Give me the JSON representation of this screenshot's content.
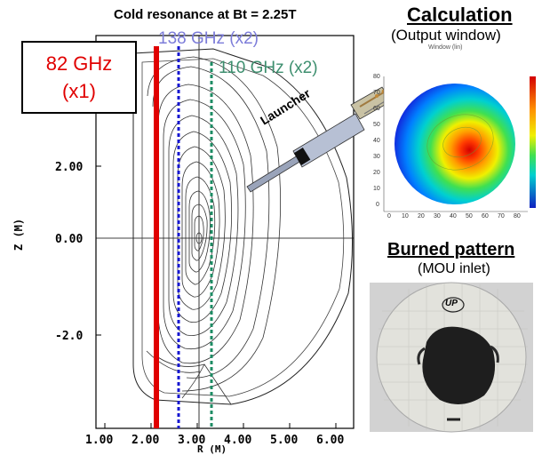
{
  "top_title": "Cold resonance at Bt = 2.25T",
  "resonances": {
    "r82_line1": "82 GHz",
    "r82_line2": "(x1)",
    "r138": "138 GHz (x2)",
    "r110": "110 GHz (x2)",
    "colors": {
      "r82": "#e00000",
      "r138": "#1515d0",
      "r110": "#1e8c64"
    }
  },
  "launcher_label": "Launcher",
  "plot": {
    "xticks": [
      "1.00",
      "2.00",
      "3.00",
      "4.00",
      "5.00",
      "6.00"
    ],
    "yticks": [
      "2.00",
      "0.00",
      "-2.0"
    ],
    "xlabel": "R (M)",
    "ylabel": "Z (M)"
  },
  "calculation": {
    "title": "Calculation",
    "subtitle": "(Output window)",
    "window_title": "Window (lin)",
    "y_ticks": [
      "80",
      "70",
      "60",
      "50",
      "40",
      "30",
      "20",
      "10",
      "0"
    ],
    "x_ticks": [
      "0",
      "10",
      "20",
      "30",
      "40",
      "50",
      "60",
      "70",
      "80"
    ]
  },
  "burned": {
    "title": "Burned pattern",
    "subtitle": "(MOU inlet)",
    "stamp": "UP"
  }
}
